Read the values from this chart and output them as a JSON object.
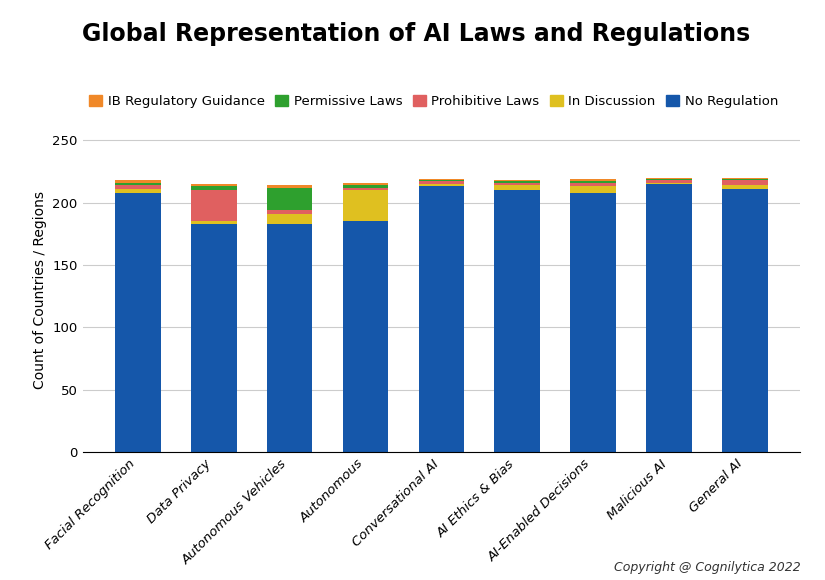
{
  "title": "Global Representation of AI Laws and Regulations",
  "ylabel": "Count of Countries / Regions",
  "copyright": "Copyright @ Cognilytica 2022",
  "categories": [
    "Facial Recognition",
    "Data Privacy",
    "Autonomous Vehicles",
    "Autonomous",
    "Conversational AI",
    "AI Ethics & Bias",
    "AI-Enabled Decisions",
    "Malicious AI",
    "General AI"
  ],
  "series": {
    "No Regulation": {
      "color": "#1557aa",
      "values": [
        208,
        183,
        183,
        185,
        213,
        210,
        208,
        215,
        211
      ]
    },
    "In Discussion": {
      "color": "#dfc020",
      "values": [
        3,
        2,
        8,
        25,
        2,
        4,
        5,
        1,
        3
      ]
    },
    "Prohibitive Laws": {
      "color": "#e06060",
      "values": [
        3,
        25,
        3,
        2,
        2,
        2,
        3,
        2,
        4
      ]
    },
    "Permissive Laws": {
      "color": "#2ea02e",
      "values": [
        2,
        3,
        18,
        2,
        1,
        1,
        1,
        1,
        1
      ]
    },
    "IB Regulatory Guidance": {
      "color": "#f08828",
      "values": [
        2,
        2,
        2,
        2,
        1,
        1,
        2,
        1,
        1
      ]
    }
  },
  "legend_order": [
    "IB Regulatory Guidance",
    "Permissive Laws",
    "Prohibitive Laws",
    "In Discussion",
    "No Regulation"
  ],
  "stack_order": [
    "No Regulation",
    "In Discussion",
    "Prohibitive Laws",
    "Permissive Laws",
    "IB Regulatory Guidance"
  ],
  "ylim": [
    0,
    260
  ],
  "yticks": [
    0,
    50,
    100,
    150,
    200,
    250
  ],
  "background_color": "#ffffff",
  "title_fontsize": 17,
  "legend_fontsize": 9.5,
  "axis_label_fontsize": 10,
  "tick_fontsize": 9.5,
  "bar_width": 0.6
}
